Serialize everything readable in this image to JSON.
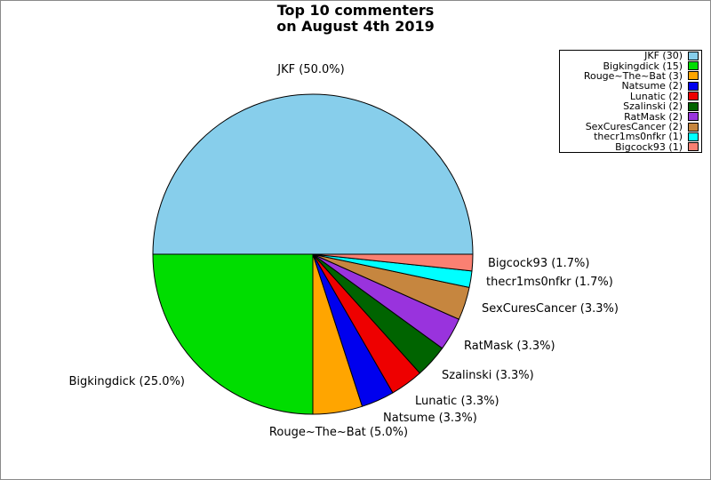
{
  "window": {
    "background": "#FFFFFF",
    "frame_color": "#8A8A8A"
  },
  "title": {
    "line1": "Top 10 commenters",
    "line2": "on August 4th 2019"
  },
  "chart_data": {
    "type": "pie",
    "title": "Top 10 commenters on August 4th 2019",
    "total": 60,
    "start_angle_deg": 0,
    "direction": "counterclockwise",
    "legend_position": "top-right",
    "slices": [
      {
        "name": "JKF",
        "count": 30,
        "percent": "50.0%",
        "display": "JKF (50.0%)",
        "legend": "JKF (30)",
        "color": "#87CEEB"
      },
      {
        "name": "Bigkingdick",
        "count": 15,
        "percent": "25.0%",
        "display": "Bigkingdick (25.0%)",
        "legend": "Bigkingdick (15)",
        "color": "#00DD00"
      },
      {
        "name": "Rouge~The~Bat",
        "count": 3,
        "percent": "5.0%",
        "display": "Rouge~The~Bat (5.0%)",
        "legend": "Rouge~The~Bat (3)",
        "color": "#FFA500"
      },
      {
        "name": "Natsume",
        "count": 2,
        "percent": "3.3%",
        "display": "Natsume (3.3%)",
        "legend": "Natsume (2)",
        "color": "#0000EE"
      },
      {
        "name": "Lunatic",
        "count": 2,
        "percent": "3.3%",
        "display": "Lunatic (3.3%)",
        "legend": "Lunatic (2)",
        "color": "#EE0000"
      },
      {
        "name": "Szalinski",
        "count": 2,
        "percent": "3.3%",
        "display": "Szalinski (3.3%)",
        "legend": "Szalinski (2)",
        "color": "#006400"
      },
      {
        "name": "RatMask",
        "count": 2,
        "percent": "3.3%",
        "display": "RatMask (3.3%)",
        "legend": "RatMask (2)",
        "color": "#9933DD"
      },
      {
        "name": "SexCuresCancer",
        "count": 2,
        "percent": "3.3%",
        "display": "SexCuresCancer (3.3%)",
        "legend": "SexCuresCancer (2)",
        "color": "#C6863F"
      },
      {
        "name": "thecr1ms0nfkr",
        "count": 1,
        "percent": "1.7%",
        "display": "thecr1ms0nfkr (1.7%)",
        "legend": "thecr1ms0nfkr (1)",
        "color": "#00FFFF"
      },
      {
        "name": "Bigcock93",
        "count": 1,
        "percent": "1.7%",
        "display": "Bigcock93 (1.7%)",
        "legend": "Bigcock93 (1)",
        "color": "#FA8072"
      }
    ]
  }
}
